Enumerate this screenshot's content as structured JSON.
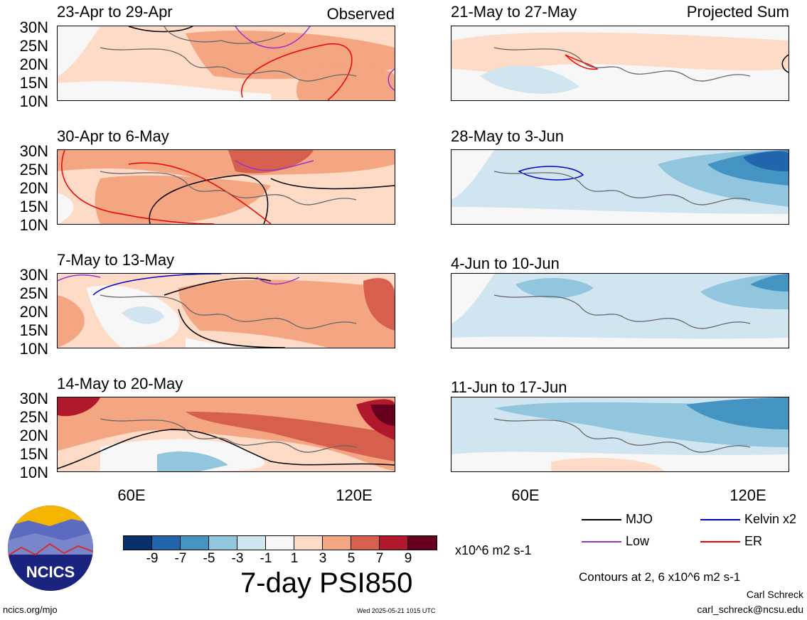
{
  "panels_left": [
    {
      "title": "23-Apr to 29-Apr",
      "tag": "Observed"
    },
    {
      "title": "30-Apr to 6-May",
      "tag": ""
    },
    {
      "title": "7-May to 13-May",
      "tag": ""
    },
    {
      "title": "14-May to 20-May",
      "tag": ""
    }
  ],
  "panels_right": [
    {
      "title": "21-May to 27-May",
      "tag": "Projected Sum"
    },
    {
      "title": "28-May to 3-Jun",
      "tag": ""
    },
    {
      "title": "4-Jun to 10-Jun",
      "tag": ""
    },
    {
      "title": "11-Jun to 17-Jun",
      "tag": ""
    }
  ],
  "y_ticks": [
    "30N",
    "25N",
    "20N",
    "15N",
    "10N"
  ],
  "x_ticks": [
    "60E",
    "120E"
  ],
  "colorbar": {
    "colors": [
      "#08306b",
      "#2166ac",
      "#4393c3",
      "#92c5de",
      "#d1e5f0",
      "#f7f7f7",
      "#fddbc7",
      "#f4a582",
      "#d6604d",
      "#b2182b",
      "#67001f"
    ],
    "tick_labels": [
      "-9",
      "-7",
      "-5",
      "-3",
      "-1",
      "1",
      "3",
      "5",
      "7",
      "9"
    ],
    "units": "x10^6 m2 s-1"
  },
  "title": "7-day PSI850",
  "legend": [
    {
      "label": "MJO",
      "color": "#000000"
    },
    {
      "label": "Kelvin x2",
      "color": "#0000cc"
    },
    {
      "label": "Low",
      "color": "#9933cc"
    },
    {
      "label": "ER",
      "color": "#ee0000"
    }
  ],
  "contour_note": "Contours at 2, 6 x10^6 m2 s-1",
  "author": "Carl Schreck",
  "email": "carl_schreck@ncsu.edu",
  "site": "ncics.org/mjo",
  "timestamp": "Wed 2025-05-21 1015 UTC",
  "logo_text": "NCICS"
}
